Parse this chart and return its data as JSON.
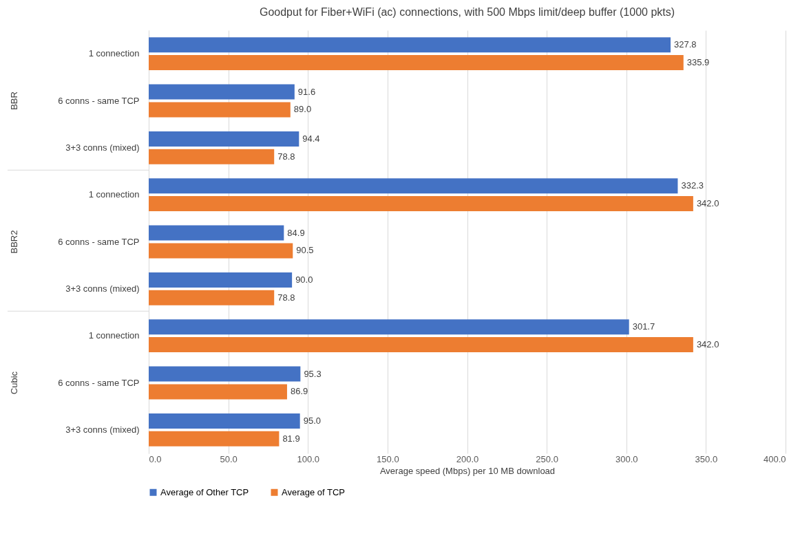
{
  "chart_data": {
    "type": "bar",
    "orientation": "horizontal",
    "title": "Goodput for Fiber+WiFi (ac) connections, with 500 Mbps limit/deep buffer (1000 pkts)",
    "xlabel": "Average speed (Mbps) per 10 MB download",
    "categories": [
      "1 connection",
      "6 conns - same TCP",
      "3+3 conns (mixed)",
      "1 connection",
      "6 conns - same TCP",
      "3+3 conns (mixed)",
      "1 connection",
      "6 conns - same TCP",
      "3+3 conns (mixed)"
    ],
    "annotations": [
      "BBR",
      "BBR2",
      "Cubic"
    ],
    "series": [
      {
        "name": "Average of Other TCP",
        "color": "#4472c4",
        "values": [
          327.8,
          91.6,
          94.4,
          332.3,
          84.9,
          90.0,
          301.7,
          95.3,
          95.0
        ],
        "value_labels": [
          "327.8",
          "91.6",
          "94.4",
          "332.3",
          "84.9",
          "90.0",
          "301.7",
          "95.3",
          "95.0"
        ]
      },
      {
        "name": "Average of TCP",
        "color": "#ed7d31",
        "values": [
          335.9,
          89.0,
          78.8,
          342.0,
          90.5,
          78.8,
          342.0,
          86.9,
          81.9
        ],
        "value_labels": [
          "335.9",
          "89.0",
          "78.8",
          "342.0",
          "90.5",
          "78.8",
          "342.0",
          "86.9",
          "81.9"
        ]
      }
    ],
    "xlim": [
      0,
      400
    ],
    "xticks": [
      {
        "value": 0,
        "label": "0.0"
      },
      {
        "value": 50,
        "label": "50.0"
      },
      {
        "value": 100,
        "label": "100.0"
      },
      {
        "value": 150,
        "label": "150.0"
      },
      {
        "value": 200,
        "label": "200.0"
      },
      {
        "value": 250,
        "label": "250.0"
      },
      {
        "value": 300,
        "label": "300.0"
      },
      {
        "value": 350,
        "label": "350.0"
      },
      {
        "value": 400,
        "label": "400.0"
      }
    ],
    "grid": "x",
    "legend": "bottom"
  }
}
